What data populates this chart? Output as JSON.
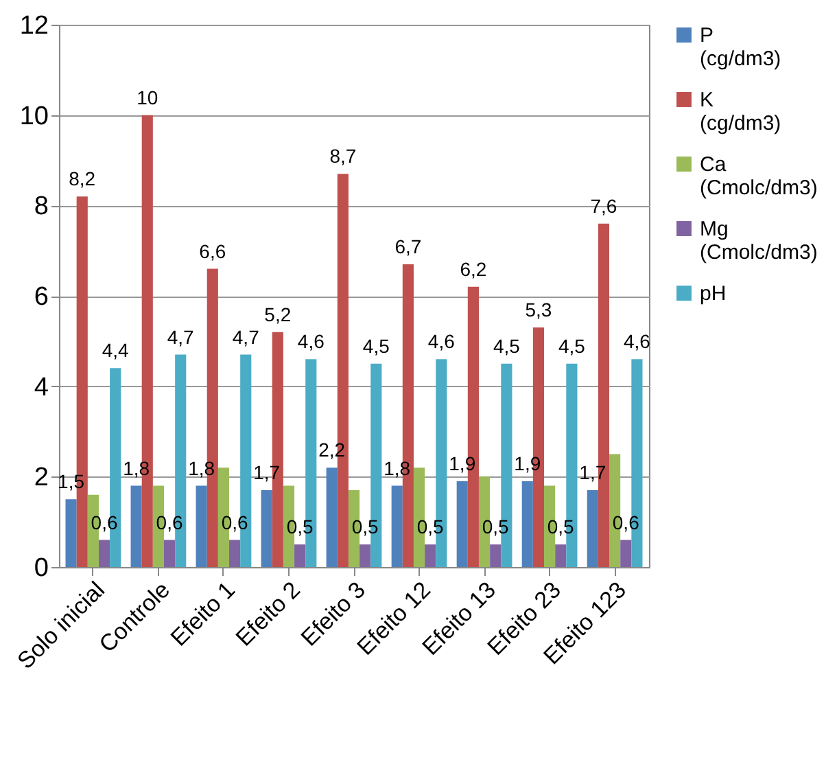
{
  "chart_data": {
    "type": "bar",
    "categories": [
      "Solo inicial",
      "Controle",
      "Efeito 1",
      "Efeito 2",
      "Efeito 3",
      "Efeito 12",
      "Efeito 13",
      "Efeito 23",
      "Efeito 123"
    ],
    "series": [
      {
        "name": "P (cg/dm3)",
        "color": "#4f81bd",
        "values": [
          1.5,
          1.8,
          1.8,
          1.7,
          2.2,
          1.8,
          1.9,
          1.9,
          1.7
        ],
        "value_labels": [
          "1,5",
          "1,8",
          "1,8",
          "1,7",
          "2,2",
          "1,8",
          "1,9",
          "1,9",
          "1,7"
        ]
      },
      {
        "name": "K (cg/dm3)",
        "color": "#c0504d",
        "values": [
          8.2,
          10,
          6.6,
          5.2,
          8.7,
          6.7,
          6.2,
          5.3,
          7.6
        ],
        "value_labels": [
          "8,2",
          "10",
          "6,6",
          "5,2",
          "8,7",
          "6,7",
          "6,2",
          "5,3",
          "7,6"
        ]
      },
      {
        "name": "Ca (Cmolc/dm3)",
        "color": "#9bbb59",
        "values": [
          1.6,
          1.8,
          2.2,
          1.8,
          1.7,
          2.2,
          2.0,
          1.8,
          2.5
        ]
      },
      {
        "name": "Mg (Cmolc/dm3)",
        "color": "#8064a2",
        "values": [
          0.6,
          0.6,
          0.6,
          0.5,
          0.5,
          0.5,
          0.5,
          0.5,
          0.6
        ],
        "value_labels": [
          "0,6",
          "0,6",
          "0,6",
          "0,5",
          "0,5",
          "0,5",
          "0,5",
          "0,5",
          "0,6"
        ]
      },
      {
        "name": "pH",
        "color": "#4bacc6",
        "values": [
          4.4,
          4.7,
          4.7,
          4.6,
          4.5,
          4.6,
          4.5,
          4.5,
          4.6
        ],
        "value_labels": [
          "4,4",
          "4,7",
          "4,7",
          "4,6",
          "4,5",
          "4,6",
          "4,5",
          "4,5",
          "4,6"
        ]
      }
    ],
    "ylim": [
      0,
      12
    ],
    "yticks": [
      0,
      2,
      4,
      6,
      8,
      10,
      12
    ],
    "grid": "y",
    "legend": "right"
  }
}
